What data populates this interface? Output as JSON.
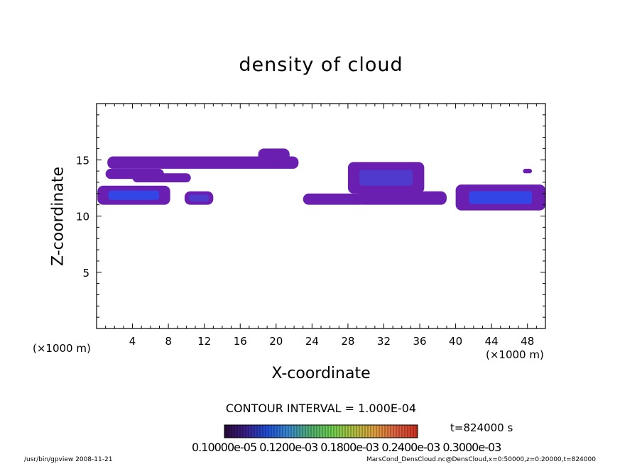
{
  "chart_data": {
    "type": "heatmap",
    "title": "density of cloud",
    "xlabel": "X-coordinate",
    "ylabel": "Z-coordinate",
    "x_unit": "(×1000 m)",
    "xlim": [
      0,
      50
    ],
    "ylim": [
      0,
      20
    ],
    "x_ticks": [
      "4",
      "8",
      "12",
      "16",
      "20",
      "24",
      "28",
      "32",
      "36",
      "40",
      "44",
      "48"
    ],
    "y_ticks": [
      "5",
      "10",
      "15"
    ],
    "contour_interval": "CONTOUR INTERVAL = 1.000E-04",
    "time": "t=824000 s",
    "colorbar_labels": "0.10000e-05  0.1200e-03  0.1800e-03  0.2400e-03  0.3000e-03",
    "colors": {
      "low": "#6a1fb0",
      "mid": "#4a3fd0",
      "high": "#2a4cf0",
      "colorbar": [
        "#2a0a3a",
        "#3a1f8a",
        "#2050d8",
        "#3a8ad0",
        "#50b070",
        "#70d050",
        "#b0c040",
        "#e0a040",
        "#e06040",
        "#d03020"
      ]
    },
    "cloud_regions": [
      {
        "x": [
          0.1,
          8.2
        ],
        "z": [
          11.0,
          12.7
        ],
        "density": "high"
      },
      {
        "x": [
          1.0,
          7.5
        ],
        "z": [
          13.3,
          14.2
        ],
        "density": "low"
      },
      {
        "x": [
          1.2,
          22.5
        ],
        "z": [
          14.2,
          15.3
        ],
        "density": "low"
      },
      {
        "x": [
          4.0,
          10.5
        ],
        "z": [
          13.0,
          13.8
        ],
        "density": "low"
      },
      {
        "x": [
          9.8,
          13.0
        ],
        "z": [
          11.0,
          12.2
        ],
        "density": "mid"
      },
      {
        "x": [
          18.0,
          21.5
        ],
        "z": [
          14.5,
          16.0
        ],
        "density": "low"
      },
      {
        "x": [
          23.0,
          30.0
        ],
        "z": [
          11.0,
          12.0
        ],
        "density": "low"
      },
      {
        "x": [
          28.0,
          36.5
        ],
        "z": [
          12.0,
          14.8
        ],
        "density": "mid"
      },
      {
        "x": [
          29.0,
          39.0
        ],
        "z": [
          11.0,
          12.2
        ],
        "density": "low"
      },
      {
        "x": [
          40.0,
          50.0
        ],
        "z": [
          10.5,
          12.8
        ],
        "density": "high"
      },
      {
        "x": [
          47.5,
          48.5
        ],
        "z": [
          13.8,
          14.2
        ],
        "density": "low"
      }
    ]
  },
  "axis": {
    "x_unit_left": "(×1000 m)",
    "x_unit_right": "(×1000 m)"
  },
  "footer": {
    "left": "/usr/bin/gpview   2008-11-21",
    "right": "MarsCond_DensCloud.nc@DensCloud,x=0:50000,z=0:20000,t=824000"
  }
}
